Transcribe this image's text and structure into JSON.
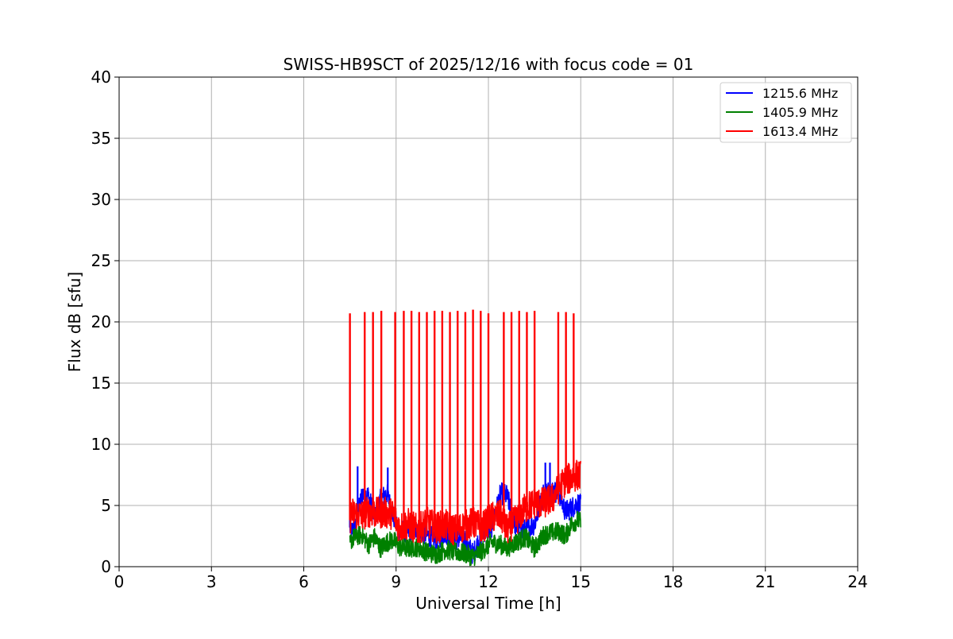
{
  "chart_data": {
    "type": "line",
    "title": "SWISS-HB9SCT of 2025/12/16 with focus code = 01",
    "xlabel": "Universal Time [h]",
    "ylabel": "Flux dB [sfu]",
    "xlim": [
      0,
      24
    ],
    "ylim": [
      0,
      40
    ],
    "xticks": [
      0,
      3,
      6,
      9,
      12,
      15,
      18,
      21,
      24
    ],
    "yticks": [
      0,
      5,
      10,
      15,
      20,
      25,
      30,
      35,
      40
    ],
    "xtick_labels": [
      "0",
      "3",
      "6",
      "9",
      "12",
      "15",
      "18",
      "21",
      "24"
    ],
    "ytick_labels": [
      "0",
      "5",
      "10",
      "15",
      "20",
      "25",
      "30",
      "35",
      "40"
    ],
    "grid": true,
    "legend_position": "top-right",
    "series": [
      {
        "name": "1215.6 MHz",
        "color": "#0000ff",
        "x": [
          7.5,
          7.55,
          7.7,
          7.9,
          8.1,
          8.3,
          8.5,
          8.7,
          8.9,
          9.1,
          9.4,
          9.7,
          10.0,
          10.3,
          10.6,
          10.9,
          11.2,
          11.5,
          11.8,
          12.1,
          12.4,
          12.6,
          12.9,
          13.2,
          13.5,
          13.8,
          14.1,
          14.3,
          14.5,
          14.7,
          14.9,
          15.0
        ],
        "y": [
          3.2,
          2.8,
          3.5,
          6.0,
          5.8,
          4.0,
          5.5,
          6.0,
          4.2,
          3.0,
          2.8,
          3.0,
          2.6,
          2.2,
          2.8,
          2.2,
          2.4,
          1.0,
          2.8,
          3.2,
          6.0,
          5.8,
          3.2,
          3.0,
          3.5,
          6.1,
          6.2,
          6.0,
          4.5,
          4.8,
          5.2,
          5.0
        ]
      },
      {
        "name": "1405.9 MHz",
        "color": "#008000",
        "x": [
          7.5,
          7.55,
          7.7,
          7.9,
          8.1,
          8.3,
          8.5,
          8.7,
          8.9,
          9.1,
          9.4,
          9.7,
          10.0,
          10.3,
          10.6,
          10.9,
          11.2,
          11.5,
          11.8,
          12.1,
          12.4,
          12.6,
          12.9,
          13.2,
          13.5,
          13.8,
          14.1,
          14.3,
          14.5,
          14.7,
          14.9,
          15.0
        ],
        "y": [
          1.8,
          2.2,
          2.5,
          2.6,
          1.8,
          2.4,
          1.5,
          2.0,
          2.2,
          1.6,
          1.5,
          1.6,
          1.2,
          1.0,
          1.4,
          1.2,
          1.1,
          0.8,
          1.3,
          2.0,
          1.8,
          1.5,
          2.0,
          2.4,
          1.5,
          2.6,
          2.8,
          2.9,
          2.5,
          3.5,
          3.8,
          3.6
        ]
      },
      {
        "name": "1613.4 MHz",
        "color": "#ff0000",
        "x": [
          7.5,
          7.55,
          7.7,
          7.9,
          8.1,
          8.3,
          8.5,
          8.7,
          8.9,
          9.1,
          9.4,
          9.7,
          10.0,
          10.3,
          10.6,
          10.9,
          11.2,
          11.5,
          11.8,
          12.1,
          12.4,
          12.6,
          12.9,
          13.2,
          13.5,
          13.8,
          14.1,
          14.3,
          14.5,
          14.7,
          14.9,
          15.0
        ],
        "y": [
          3.8,
          4.4,
          4.3,
          4.2,
          4.5,
          4.4,
          4.4,
          4.4,
          4.3,
          3.2,
          3.5,
          3.0,
          3.6,
          3.2,
          3.4,
          3.0,
          3.3,
          3.6,
          3.2,
          4.0,
          4.2,
          3.0,
          3.8,
          4.8,
          5.2,
          5.2,
          5.6,
          6.5,
          7.0,
          7.3,
          7.5,
          7.4
        ]
      }
    ],
    "spikes_red_x": [
      7.5,
      7.98,
      8.25,
      8.52,
      8.97,
      9.25,
      9.5,
      9.75,
      10.0,
      10.25,
      10.5,
      10.75,
      11.0,
      11.25,
      11.5,
      11.75,
      12.0,
      12.5,
      12.75,
      13.0,
      13.25,
      13.5,
      14.27,
      14.52,
      14.77
    ],
    "spikes_red_y": [
      20.7,
      20.8,
      20.8,
      20.9,
      20.8,
      20.9,
      20.9,
      20.8,
      20.8,
      20.9,
      20.9,
      20.8,
      20.9,
      20.8,
      21.0,
      20.9,
      20.7,
      20.8,
      20.8,
      20.9,
      20.8,
      20.9,
      20.8,
      20.8,
      20.7
    ],
    "spikes_blue_x": [
      7.5,
      7.75,
      8.73,
      13.85,
      14.0
    ],
    "spikes_blue_y": [
      9.5,
      8.2,
      8.1,
      8.5,
      8.5
    ]
  }
}
